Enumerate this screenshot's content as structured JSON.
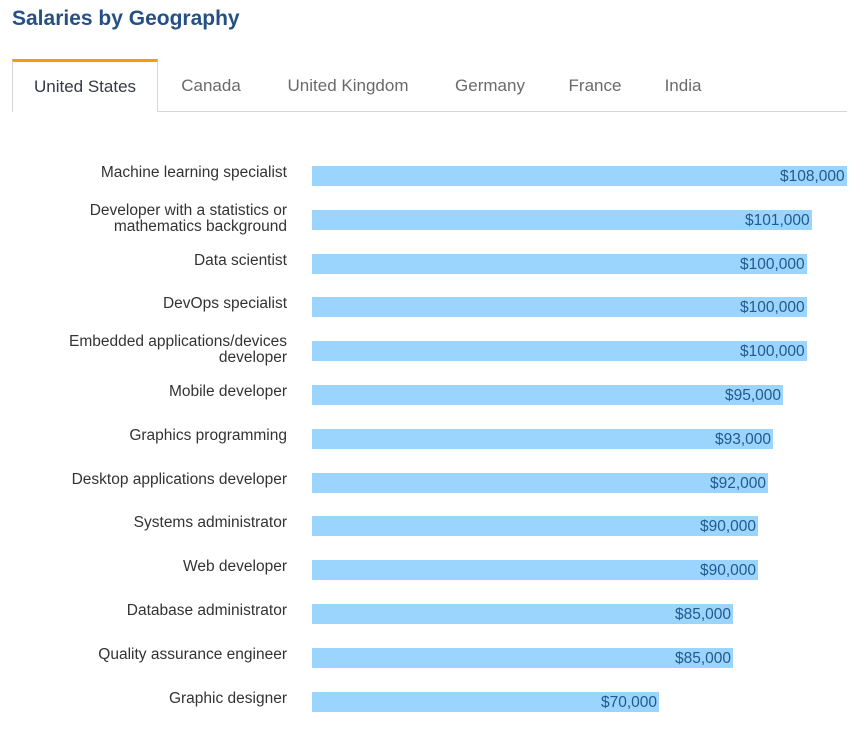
{
  "header": {
    "title": "Salaries by Geography"
  },
  "tabs": [
    {
      "label": "United States",
      "active": true
    },
    {
      "label": "Canada",
      "active": false
    },
    {
      "label": "United Kingdom",
      "active": false
    },
    {
      "label": "Germany",
      "active": false
    },
    {
      "label": "France",
      "active": false
    },
    {
      "label": "India",
      "active": false
    }
  ],
  "colors": {
    "bar": "#9bd4fd",
    "value_text": "#1f5b8e",
    "title": "#245085",
    "active_tab_accent": "#f39c12"
  },
  "chart_data": {
    "type": "bar",
    "orientation": "horizontal",
    "title": "Salaries by Geography",
    "subtitle": "United States",
    "xlabel": "",
    "ylabel": "",
    "xlim": [
      0,
      108000
    ],
    "grid": false,
    "legend": "none",
    "categories": [
      "Machine learning specialist",
      "Developer with a statistics or mathematics background",
      "Data scientist",
      "DevOps specialist",
      "Embedded applications/devices developer",
      "Mobile developer",
      "Graphics programming",
      "Desktop applications developer",
      "Systems administrator",
      "Web developer",
      "Database administrator",
      "Quality assurance engineer",
      "Graphic designer"
    ],
    "label_lines": [
      [
        "Machine learning specialist"
      ],
      [
        "Developer with a statistics or",
        "mathematics background"
      ],
      [
        "Data scientist"
      ],
      [
        "DevOps specialist"
      ],
      [
        "Embedded applications/devices",
        "developer"
      ],
      [
        "Mobile developer"
      ],
      [
        "Graphics programming"
      ],
      [
        "Desktop applications developer"
      ],
      [
        "Systems administrator"
      ],
      [
        "Web developer"
      ],
      [
        "Database administrator"
      ],
      [
        "Quality assurance engineer"
      ],
      [
        "Graphic designer"
      ]
    ],
    "values": [
      108000,
      101000,
      100000,
      100000,
      100000,
      95000,
      93000,
      92000,
      90000,
      90000,
      85000,
      85000,
      70000
    ],
    "value_labels": [
      "$108,000",
      "$101,000",
      "$100,000",
      "$100,000",
      "$100,000",
      "$95,000",
      "$93,000",
      "$92,000",
      "$90,000",
      "$90,000",
      "$85,000",
      "$85,000",
      "$70,000"
    ]
  }
}
